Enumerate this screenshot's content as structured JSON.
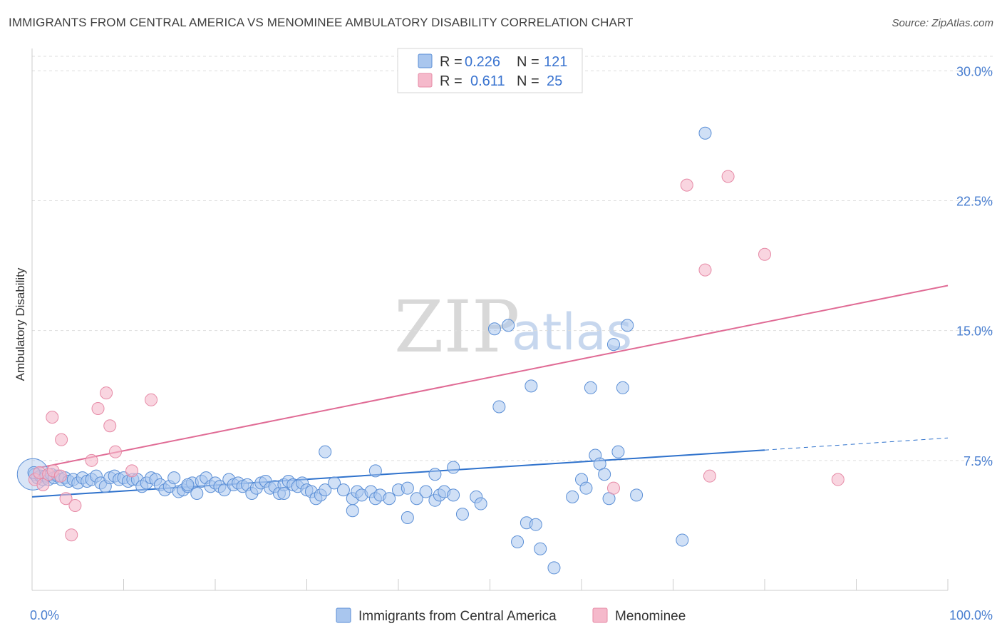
{
  "header": {
    "title": "IMMIGRANTS FROM CENTRAL AMERICA VS MENOMINEE AMBULATORY DISABILITY CORRELATION CHART",
    "source": "Source: ZipAtlas.com"
  },
  "watermark": {
    "zip": "ZIP",
    "atlas": "atlas"
  },
  "legend": {
    "rows": [
      {
        "r_label": "R =",
        "r_value": "0.226",
        "n_label": "N =",
        "n_value": "121"
      },
      {
        "r_label": "R =",
        "r_value": "0.611",
        "n_label": "N =",
        "n_value": "25"
      }
    ]
  },
  "bottom_legend": {
    "items": [
      {
        "label": "Immigrants from Central America"
      },
      {
        "label": "Menominee"
      }
    ]
  },
  "colors": {
    "blue_fill": "#a9c6ee",
    "blue_stroke": "#5b8fd6",
    "blue_line": "#2f72cc",
    "pink_fill": "#f5b9cb",
    "pink_stroke": "#e68aa6",
    "pink_line": "#e06b95",
    "grid": "#dddddd",
    "tick_text": "#4a7fd0"
  },
  "chart_data": {
    "type": "scatter",
    "title": "IMMIGRANTS FROM CENTRAL AMERICA VS MENOMINEE AMBULATORY DISABILITY CORRELATION CHART",
    "xlabel": "",
    "ylabel": "Ambulatory Disability",
    "xlim": [
      0,
      100
    ],
    "ylim": [
      0,
      31
    ],
    "x_tick_labels": [
      "0.0%",
      "100.0%"
    ],
    "y_ticks": [
      7.5,
      15.0,
      22.5,
      30.0
    ],
    "y_tick_labels": [
      "7.5%",
      "15.0%",
      "22.5%",
      "30.0%"
    ],
    "grid": "horizontal dashed",
    "legend_position": "top-center",
    "series": [
      {
        "name": "Immigrants from Central America",
        "r": 0.226,
        "n": 121,
        "trend": {
          "x": [
            0,
            80
          ],
          "y": [
            5.4,
            8.1
          ],
          "extended_dashed_to": [
            100,
            8.8
          ]
        },
        "points": [
          [
            0.3,
            6.7
          ],
          [
            0.6,
            6.5
          ],
          [
            0.9,
            6.6
          ],
          [
            1.2,
            6.4
          ],
          [
            1.5,
            6.6
          ],
          [
            1.8,
            6.4
          ],
          [
            2.1,
            6.7
          ],
          [
            2.4,
            6.5
          ],
          [
            2.8,
            6.6
          ],
          [
            3.2,
            6.4
          ],
          [
            3.6,
            6.5
          ],
          [
            4,
            6.3
          ],
          [
            4.5,
            6.4
          ],
          [
            5,
            6.2
          ],
          [
            5.5,
            6.5
          ],
          [
            6,
            6.3
          ],
          [
            6.5,
            6.4
          ],
          [
            7,
            6.6
          ],
          [
            7.5,
            6.2
          ],
          [
            8,
            6.0
          ],
          [
            8.5,
            6.5
          ],
          [
            9,
            6.6
          ],
          [
            9.5,
            6.4
          ],
          [
            10,
            6.5
          ],
          [
            10.5,
            6.3
          ],
          [
            11,
            6.4
          ],
          [
            11.5,
            6.4
          ],
          [
            12,
            6.0
          ],
          [
            12.5,
            6.2
          ],
          [
            13,
            6.5
          ],
          [
            13.5,
            6.4
          ],
          [
            14,
            6.1
          ],
          [
            14.5,
            5.8
          ],
          [
            15,
            6.0
          ],
          [
            15.5,
            6.5
          ],
          [
            16,
            5.7
          ],
          [
            16.5,
            5.8
          ],
          [
            17,
            6.0
          ],
          [
            17.5,
            6.2
          ],
          [
            18,
            5.6
          ],
          [
            18.5,
            6.3
          ],
          [
            19,
            6.5
          ],
          [
            19.5,
            6.0
          ],
          [
            20,
            6.2
          ],
          [
            20.5,
            6.0
          ],
          [
            21,
            5.8
          ],
          [
            21.5,
            6.4
          ],
          [
            22,
            6.1
          ],
          [
            22.5,
            6.2
          ],
          [
            23,
            6.0
          ],
          [
            23.5,
            6.1
          ],
          [
            24,
            5.6
          ],
          [
            24.5,
            5.9
          ],
          [
            25,
            6.2
          ],
          [
            25.5,
            6.3
          ],
          [
            26,
            5.9
          ],
          [
            26.5,
            6.0
          ],
          [
            27,
            5.6
          ],
          [
            27.5,
            6.1
          ],
          [
            28,
            6.3
          ],
          [
            28.5,
            6.1
          ],
          [
            29,
            6.0
          ],
          [
            29.5,
            6.2
          ],
          [
            30,
            5.8
          ],
          [
            30.5,
            5.7
          ],
          [
            31,
            5.3
          ],
          [
            31.5,
            5.5
          ],
          [
            32,
            5.8
          ],
          [
            33,
            6.2
          ],
          [
            34,
            5.8
          ],
          [
            35,
            5.3
          ],
          [
            35.5,
            5.7
          ],
          [
            36,
            5.5
          ],
          [
            37,
            5.7
          ],
          [
            37.5,
            5.3
          ],
          [
            38,
            5.5
          ],
          [
            39,
            5.3
          ],
          [
            40,
            5.8
          ],
          [
            41,
            5.9
          ],
          [
            42,
            5.3
          ],
          [
            43,
            5.7
          ],
          [
            44,
            5.2
          ],
          [
            44.5,
            5.5
          ],
          [
            45,
            5.7
          ],
          [
            46,
            5.5
          ],
          [
            32,
            8.0
          ],
          [
            35,
            4.6
          ],
          [
            37.5,
            6.9
          ],
          [
            41,
            4.2
          ],
          [
            44,
            6.7
          ],
          [
            46,
            7.1
          ],
          [
            47,
            4.4
          ],
          [
            48.5,
            5.4
          ],
          [
            49,
            5.0
          ],
          [
            50.5,
            15.1
          ],
          [
            51,
            10.6
          ],
          [
            52,
            15.3
          ],
          [
            53,
            2.8
          ],
          [
            54,
            3.9
          ],
          [
            54.5,
            11.8
          ],
          [
            55,
            3.8
          ],
          [
            55.5,
            2.4
          ],
          [
            57,
            1.3
          ],
          [
            59,
            5.4
          ],
          [
            60,
            6.4
          ],
          [
            60.5,
            5.9
          ],
          [
            61,
            11.7
          ],
          [
            61.5,
            7.8
          ],
          [
            62,
            7.3
          ],
          [
            62.5,
            6.7
          ],
          [
            63,
            5.3
          ],
          [
            63.5,
            14.2
          ],
          [
            64,
            8.0
          ],
          [
            64.5,
            11.7
          ],
          [
            65,
            15.3
          ],
          [
            66,
            5.5
          ],
          [
            71,
            2.9
          ],
          [
            73.5,
            26.4
          ],
          [
            17,
            6.1
          ],
          [
            27.5,
            5.6
          ],
          [
            0.2,
            6.8
          ]
        ]
      },
      {
        "name": "Menominee",
        "r": 0.611,
        "n": 25,
        "trend": {
          "x": [
            0,
            100
          ],
          "y": [
            7.0,
            17.6
          ]
        },
        "points": [
          [
            0.3,
            6.4
          ],
          [
            0.8,
            6.8
          ],
          [
            1.2,
            6.1
          ],
          [
            1.8,
            6.7
          ],
          [
            2.3,
            6.9
          ],
          [
            3.1,
            6.6
          ],
          [
            2.2,
            10.0
          ],
          [
            3.2,
            8.7
          ],
          [
            3.7,
            5.3
          ],
          [
            4.3,
            3.2
          ],
          [
            4.7,
            4.9
          ],
          [
            6.5,
            7.5
          ],
          [
            7.2,
            10.5
          ],
          [
            8.1,
            11.4
          ],
          [
            8.5,
            9.5
          ],
          [
            9.1,
            8.0
          ],
          [
            10.9,
            6.9
          ],
          [
            13,
            11.0
          ],
          [
            63.5,
            5.9
          ],
          [
            71.5,
            23.4
          ],
          [
            73.5,
            18.5
          ],
          [
            74,
            6.6
          ],
          [
            76,
            23.9
          ],
          [
            80,
            19.4
          ],
          [
            88,
            6.4
          ]
        ]
      }
    ]
  }
}
